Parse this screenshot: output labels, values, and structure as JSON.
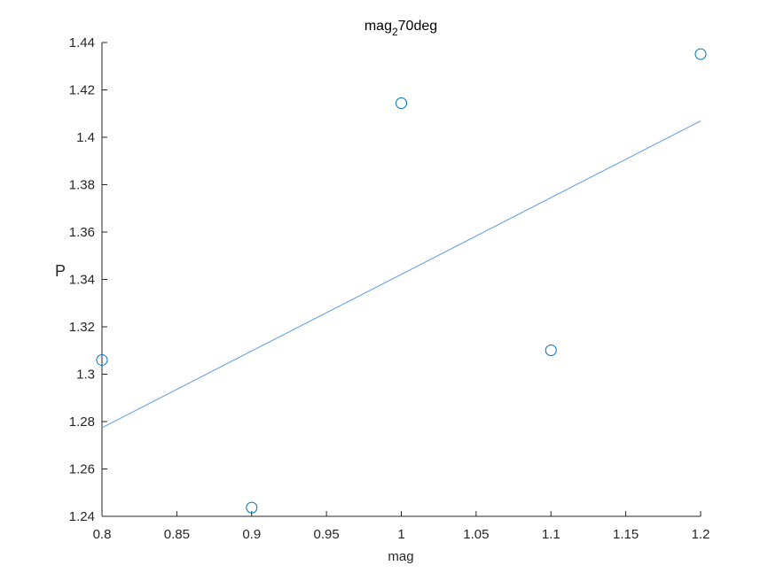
{
  "chart_data": {
    "type": "scatter",
    "title": {
      "base": "mag",
      "subscript": "2",
      "rest": "70deg"
    },
    "xlabel": "mag",
    "ylabel": "P",
    "xlim": [
      0.8,
      1.2
    ],
    "ylim": [
      1.24,
      1.44
    ],
    "x_ticks": [
      "0.8",
      "0.85",
      "0.9",
      "0.95",
      "1",
      "1.05",
      "1.1",
      "1.15",
      "1.2"
    ],
    "y_ticks": [
      "1.24",
      "1.26",
      "1.28",
      "1.3",
      "1.32",
      "1.34",
      "1.36",
      "1.38",
      "1.4",
      "1.42",
      "1.44"
    ],
    "grid": false,
    "series": [
      {
        "type": "scatter",
        "marker": "circle-open",
        "color": "#0072BD",
        "points": [
          {
            "x": 0.8,
            "y": 1.306
          },
          {
            "x": 0.9,
            "y": 1.2437
          },
          {
            "x": 1.0,
            "y": 1.4144
          },
          {
            "x": 1.1,
            "y": 1.3101
          },
          {
            "x": 1.2,
            "y": 1.4351
          }
        ]
      },
      {
        "type": "line",
        "color": "#5B9BE8",
        "points": [
          {
            "x": 0.8,
            "y": 1.2774
          },
          {
            "x": 1.2,
            "y": 1.4069
          }
        ]
      }
    ]
  }
}
